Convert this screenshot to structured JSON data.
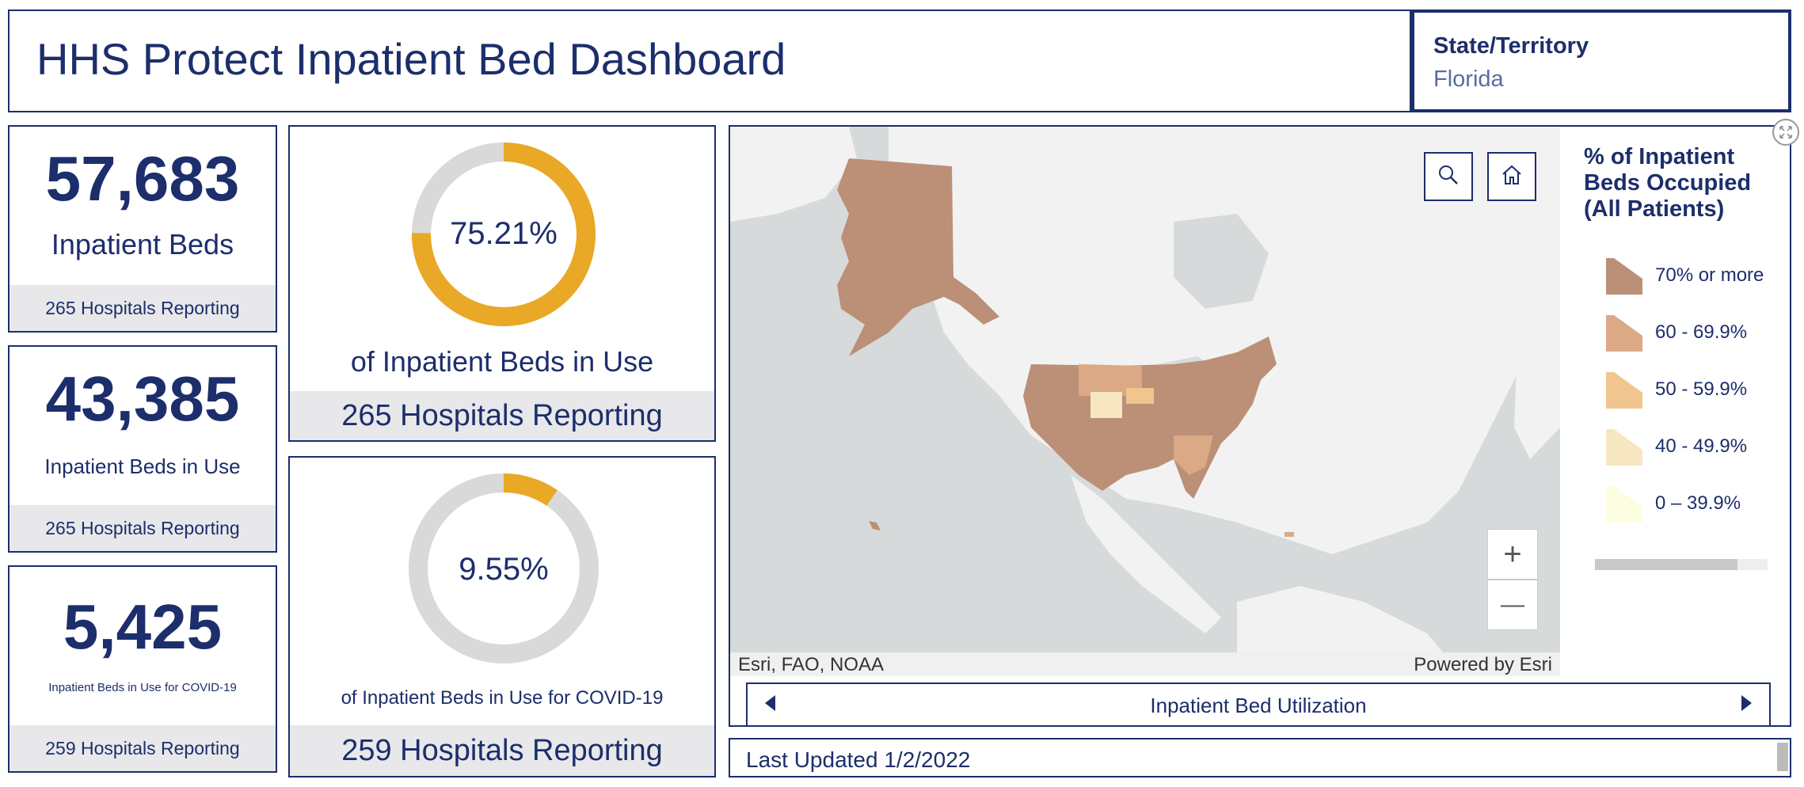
{
  "header": {
    "title": "HHS Protect Inpatient Bed Dashboard"
  },
  "selector": {
    "label": "State/Territory",
    "value": "Florida"
  },
  "kpis": [
    {
      "value": "57,683",
      "label": "Inpatient Beds",
      "footer": "265 Hospitals Reporting"
    },
    {
      "value": "43,385",
      "label": "Inpatient Beds in Use",
      "footer": "265 Hospitals Reporting"
    },
    {
      "value": "5,425",
      "label": "Inpatient Beds in Use for COVID-19",
      "footer": "259 Hospitals Reporting"
    }
  ],
  "gauges": [
    {
      "percent": 75.21,
      "value_text": "75.21%",
      "label": "of Inpatient Beds in Use",
      "footer": "265 Hospitals Reporting"
    },
    {
      "percent": 9.55,
      "value_text": "9.55%",
      "label": "of Inpatient Beds in Use for COVID-19",
      "footer": "259 Hospitals Reporting"
    }
  ],
  "map": {
    "attribution_left": "Esri, FAO, NOAA",
    "attribution_right": "Powered by Esri",
    "carousel_label": "Inpatient Bed Utilization",
    "search_icon": "search-icon",
    "home_icon": "home-icon",
    "zoom_in": "+",
    "zoom_out": "—"
  },
  "legend": {
    "title": "% of Inpatient Beds Occupied (All Patients)",
    "items": [
      {
        "label": "70% or more",
        "color": "#bb9077"
      },
      {
        "label": "60 - 69.9%",
        "color": "#dba985"
      },
      {
        "label": "50 - 59.9%",
        "color": "#f0c590"
      },
      {
        "label": "40 - 49.9%",
        "color": "#f7e7c0"
      },
      {
        "label": "0 – 39.9%",
        "color": "#fdfde2"
      }
    ]
  },
  "footer": {
    "last_updated": "Last Updated 1/2/2022"
  },
  "colors": {
    "navy": "#1c2e6b",
    "gauge_fill": "#e9a825",
    "gauge_track": "#d9d9d9"
  }
}
